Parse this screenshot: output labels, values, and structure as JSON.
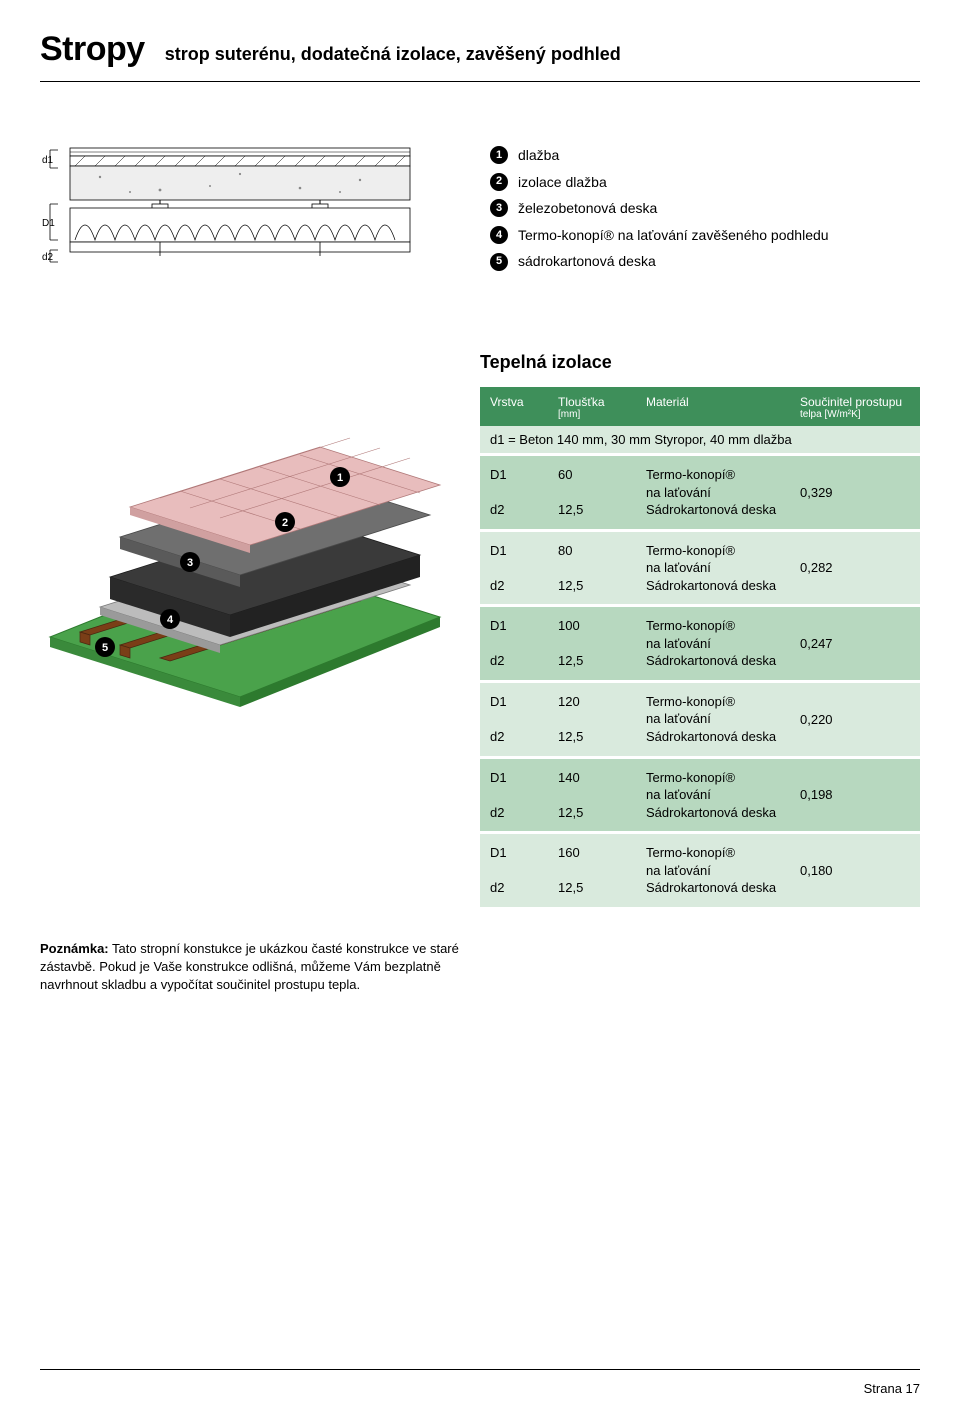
{
  "page": {
    "title": "Stropy",
    "subtitle": "strop suterénu, dodatečná izolace, zavěšený podhled",
    "section_heading": "Tepelná izolace",
    "page_label": "Strana 17"
  },
  "section_diagram": {
    "labels": {
      "d1": "d1",
      "D1": "D1",
      "d2": "d2"
    },
    "colors": {
      "tile": "#ffffff",
      "tile_line": "#000000",
      "beton": "#e9e9e9",
      "beton_line": "#5c5c5c",
      "insul_fill": "#ffffff",
      "insul_line": "#000000",
      "gyps": "#ffffff",
      "gyps_line": "#000000",
      "hanger": "#000000"
    }
  },
  "legend": [
    {
      "n": "1",
      "text": "dlažba"
    },
    {
      "n": "2",
      "text": "izolace dlažba"
    },
    {
      "n": "3",
      "text": "železobetonová deska"
    },
    {
      "n": "4",
      "text": "Termo-konopí® na laťování zavěšeného podhledu"
    },
    {
      "n": "5",
      "text": "sádrokartonová deska"
    }
  ],
  "iso_diagram": {
    "colors": {
      "base": "#4aa24b",
      "wood": "#7a3e17",
      "gyps": "#bcbcbc",
      "insul": "#3a3a3a",
      "mortar": "#6f6f6f",
      "tile": "#e8bdbd",
      "tile_line": "#b07878",
      "outline": "#000000",
      "circle_fill": "#000000",
      "circle_text": "#ffffff"
    },
    "callouts": [
      "1",
      "2",
      "3",
      "4",
      "5"
    ]
  },
  "table": {
    "head": {
      "c1": "Vrstva",
      "c2": "Tloušťka",
      "c2_unit": "[mm]",
      "c3": "Materiál",
      "c4": "Součinitel prostupu",
      "c4_unit": "telpa [W/m²K]"
    },
    "d1_note": "d1 = Beton 140 mm, 30 mm Styropor, 40 mm dlažba",
    "material_lines": [
      "Termo-konopí®",
      "na laťování",
      "Sádrokartonová deska"
    ],
    "rows": [
      {
        "D1": "60",
        "d2": "12,5",
        "coeff": "0,329",
        "shade": "a"
      },
      {
        "D1": "80",
        "d2": "12,5",
        "coeff": "0,282",
        "shade": "b"
      },
      {
        "D1": "100",
        "d2": "12,5",
        "coeff": "0,247",
        "shade": "a"
      },
      {
        "D1": "120",
        "d2": "12,5",
        "coeff": "0,220",
        "shade": "b"
      },
      {
        "D1": "140",
        "d2": "12,5",
        "coeff": "0,198",
        "shade": "a"
      },
      {
        "D1": "160",
        "d2": "12,5",
        "coeff": "0,180",
        "shade": "b"
      }
    ],
    "row_labels": {
      "D1": "D1",
      "d2": "d2"
    },
    "row_bg": {
      "a": "#b7d8bf",
      "b": "#d9eadd"
    },
    "head_bg": "#3e8f5a",
    "d1row_bg": "#d9eadd"
  },
  "note": {
    "label": "Poznámka:",
    "text": " Tato stropní konstukce je ukázkou časté konstrukce ve staré zástavbě. Pokud je Vaše konstrukce odlišná, můžeme Vám bezplatně navrhnout skladbu a vypočítat součinitel prostupu tepla."
  }
}
